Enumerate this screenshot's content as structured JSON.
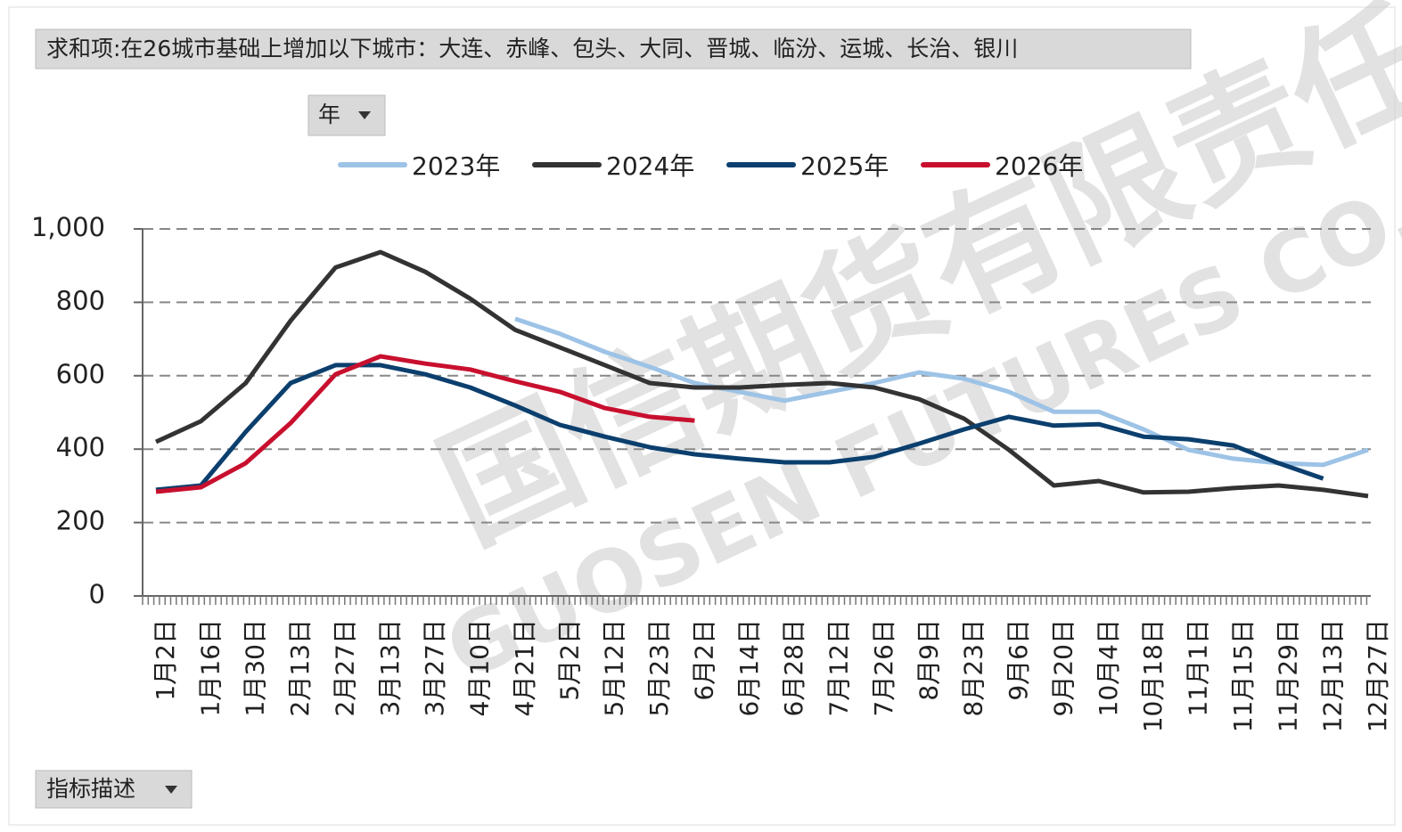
{
  "header": {
    "title": "求和项:在26城市基础上增加以下城市：大连、赤峰、包头、大同、晋城、临汾、运城、长治、银川",
    "filter_button": "年",
    "field_button": "指标描述"
  },
  "watermark": {
    "cn": "国信期货有限责任公",
    "en": "GUOSEN FUTURES CO."
  },
  "chart_data": {
    "type": "line",
    "categories": [
      "1月2日",
      "1月16日",
      "1月30日",
      "2月13日",
      "2月27日",
      "3月13日",
      "3月27日",
      "4月10日",
      "4月21日",
      "5月2日",
      "5月12日",
      "5月23日",
      "6月2日",
      "6月14日",
      "6月28日",
      "7月12日",
      "7月26日",
      "8月9日",
      "8月23日",
      "9月6日",
      "9月20日",
      "10月4日",
      "10月18日",
      "11月1日",
      "11月15日",
      "11月29日",
      "12月13日",
      "12月27日"
    ],
    "series": [
      {
        "name": "2023年",
        "color": "#9dc3e6",
        "values": [
          null,
          null,
          null,
          null,
          null,
          null,
          null,
          null,
          755,
          714,
          665,
          624,
          580,
          556,
          532,
          556,
          580,
          609,
          592,
          556,
          502,
          502,
          454,
          398,
          374,
          362,
          357,
          398
        ]
      },
      {
        "name": "2024年",
        "color": "#333333",
        "values": [
          420,
          476,
          580,
          750,
          895,
          937,
          883,
          810,
          725,
          677,
          629,
          580,
          568,
          568,
          575,
          580,
          568,
          536,
          483,
          398,
          301,
          313,
          282,
          284,
          294,
          301,
          289,
          272
        ]
      },
      {
        "name": "2025年",
        "color": "#0b3f6e",
        "values": [
          289,
          301,
          447,
          580,
          629,
          629,
          604,
          568,
          519,
          466,
          434,
          405,
          386,
          374,
          364,
          364,
          379,
          415,
          454,
          488,
          464,
          468,
          434,
          427,
          410,
          362,
          320,
          null
        ]
      },
      {
        "name": "2026年",
        "color": "#c8102e",
        "values": [
          284,
          296,
          362,
          471,
          604,
          653,
          633,
          617,
          585,
          556,
          512,
          488,
          478,
          null,
          null,
          null,
          null,
          null,
          null,
          null,
          null,
          null,
          null,
          null,
          null,
          null,
          null,
          null
        ]
      }
    ],
    "ylim": [
      0,
      1000
    ],
    "yticks": [
      0,
      200,
      400,
      600,
      800,
      {
        "value": 1000,
        "label": "1,000"
      }
    ],
    "grid": true,
    "legend": "top"
  }
}
